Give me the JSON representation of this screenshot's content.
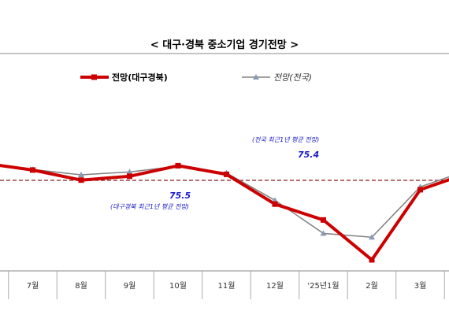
{
  "chart_data": {
    "type": "line",
    "title": "< 대구·경북  중소기업  경기전망 >",
    "categories": [
      "",
      "7월",
      "8월",
      "9월",
      "10월",
      "11월",
      "12월",
      "'25년1월",
      "2월",
      "3월",
      ""
    ],
    "series": [
      {
        "name": "전망(대구경북)",
        "color": "#cc0000",
        "values": [
          79.0,
          77.6,
          75.5,
          76.3,
          78.5,
          76.7,
          70.5,
          67.2,
          58.9,
          73.5,
          77.0
        ]
      },
      {
        "name": "전망(전국)",
        "color": "#808080",
        "values": [
          78.8,
          77.7,
          76.6,
          77.2,
          78.4,
          77.0,
          71.3,
          64.4,
          63.6,
          74.1,
          77.6
        ]
      }
    ],
    "reference_lines": [
      {
        "value": 75.4,
        "color": "#8b1a1a",
        "label": "(전국 최근1년 평균 전망)",
        "value_label": "75.4"
      },
      {
        "value": 75.5,
        "color": "#8b1a1a",
        "label": "(대구경북 최근1년 평균 전망)",
        "value_label": "75.5"
      }
    ],
    "xlabel": "",
    "ylabel": "",
    "grid": false,
    "legend": "top"
  }
}
